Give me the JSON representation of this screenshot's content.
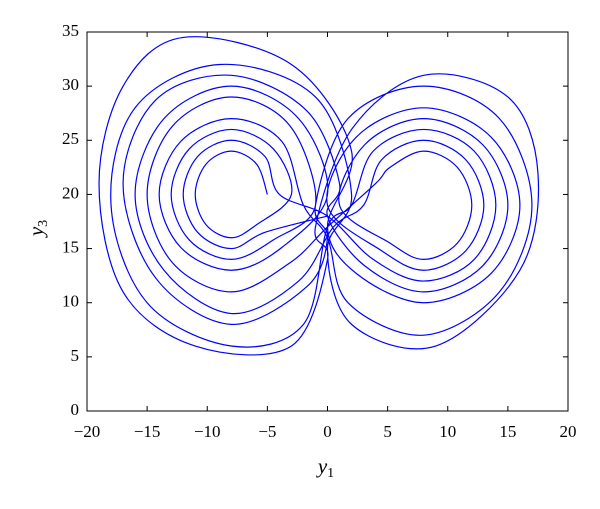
{
  "chart_data": {
    "type": "line",
    "xlabel": {
      "base": "y",
      "sub": "1"
    },
    "ylabel": {
      "base": "y",
      "sub": "3"
    },
    "xlim": [
      -20,
      20
    ],
    "ylim": [
      0,
      35
    ],
    "xticks": [
      {
        "value": -20,
        "label": "−20"
      },
      {
        "value": -15,
        "label": "−15"
      },
      {
        "value": -10,
        "label": "−10"
      },
      {
        "value": -5,
        "label": "−5"
      },
      0,
      5,
      10,
      15,
      20
    ],
    "yticks": [
      0,
      5,
      10,
      15,
      20,
      25,
      30,
      35
    ],
    "grid": false,
    "series": [
      {
        "color": "#0000ff",
        "x": [
          -5,
          -5.9,
          -8,
          -10.1,
          -11,
          -10.1,
          -8,
          -5.9,
          -3,
          -4.5,
          -8,
          -11.5,
          -13,
          -11.5,
          -8,
          -4.5,
          -1,
          -3.1,
          -8,
          -12.9,
          -15,
          -12.9,
          -8,
          -3.1,
          0,
          4,
          5.2,
          8,
          10.8,
          12,
          10.8,
          8,
          5.2,
          1,
          3.1,
          8,
          12.9,
          15,
          12.9,
          8,
          3.1,
          0,
          1,
          -1.7,
          -8,
          -14.3,
          -17,
          -14.3,
          -8,
          -1.7,
          0,
          -1,
          1.7,
          8,
          14.3,
          17,
          14.3,
          8,
          1.7,
          0,
          -2,
          -3.8,
          -8,
          -12.2,
          -14,
          -12.2,
          -8,
          -3.8,
          0,
          -2.4,
          -8,
          -13.6,
          -16,
          -13.6,
          -8,
          -2.4,
          0.5,
          3,
          4.5,
          8,
          11.5,
          13,
          11.5,
          8,
          4.5,
          0,
          2.4,
          8,
          13.6,
          16,
          13.6,
          8,
          2.4,
          0,
          2,
          -3,
          -12,
          -17,
          -19,
          -17,
          -11,
          -3,
          0,
          -1,
          2,
          8,
          15,
          17.5,
          16,
          9,
          2,
          0,
          2,
          -1,
          -9,
          -16,
          -18,
          -15,
          -8,
          -2,
          0,
          2,
          3.8,
          8,
          12.2,
          14,
          12.2,
          8,
          3.8,
          0,
          -4,
          -5.2,
          -8,
          -10.8,
          -12,
          -10.8,
          -8,
          -5.2,
          0
        ],
        "values": [
          20,
          22.8,
          24,
          22.8,
          20,
          17.2,
          16,
          17.2,
          20,
          24.2,
          26,
          24.2,
          20,
          15.8,
          14,
          15.8,
          19,
          26.3,
          29,
          26.3,
          20,
          13.7,
          11,
          13.7,
          17,
          21,
          22.5,
          24,
          22.5,
          19,
          15.5,
          14,
          15.5,
          19,
          24.6,
          27,
          24.6,
          19,
          13.4,
          11,
          13.4,
          18,
          21,
          27.7,
          31,
          28.7,
          21,
          12.3,
          8,
          11.5,
          16,
          19,
          27,
          30,
          27,
          19,
          11,
          7,
          10,
          16,
          19,
          24.9,
          27,
          24.9,
          20,
          15.1,
          13,
          15.1,
          20,
          27,
          30,
          27,
          20,
          13,
          9,
          12,
          17,
          19,
          23.2,
          25,
          23.2,
          19,
          14.8,
          13,
          14.8,
          19,
          25.3,
          28,
          25.3,
          19,
          12.7,
          10,
          12.7,
          17,
          24,
          32,
          34.5,
          30,
          21,
          11,
          6,
          6,
          14,
          17,
          26,
          31,
          29,
          22,
          13,
          6,
          8,
          15,
          20,
          29,
          32,
          28,
          19,
          10,
          6,
          8,
          17,
          19,
          24,
          26,
          24,
          19,
          14,
          12,
          14,
          18,
          20,
          23.5,
          25,
          23.5,
          20,
          16.5,
          15,
          16.5,
          18
        ]
      }
    ]
  }
}
